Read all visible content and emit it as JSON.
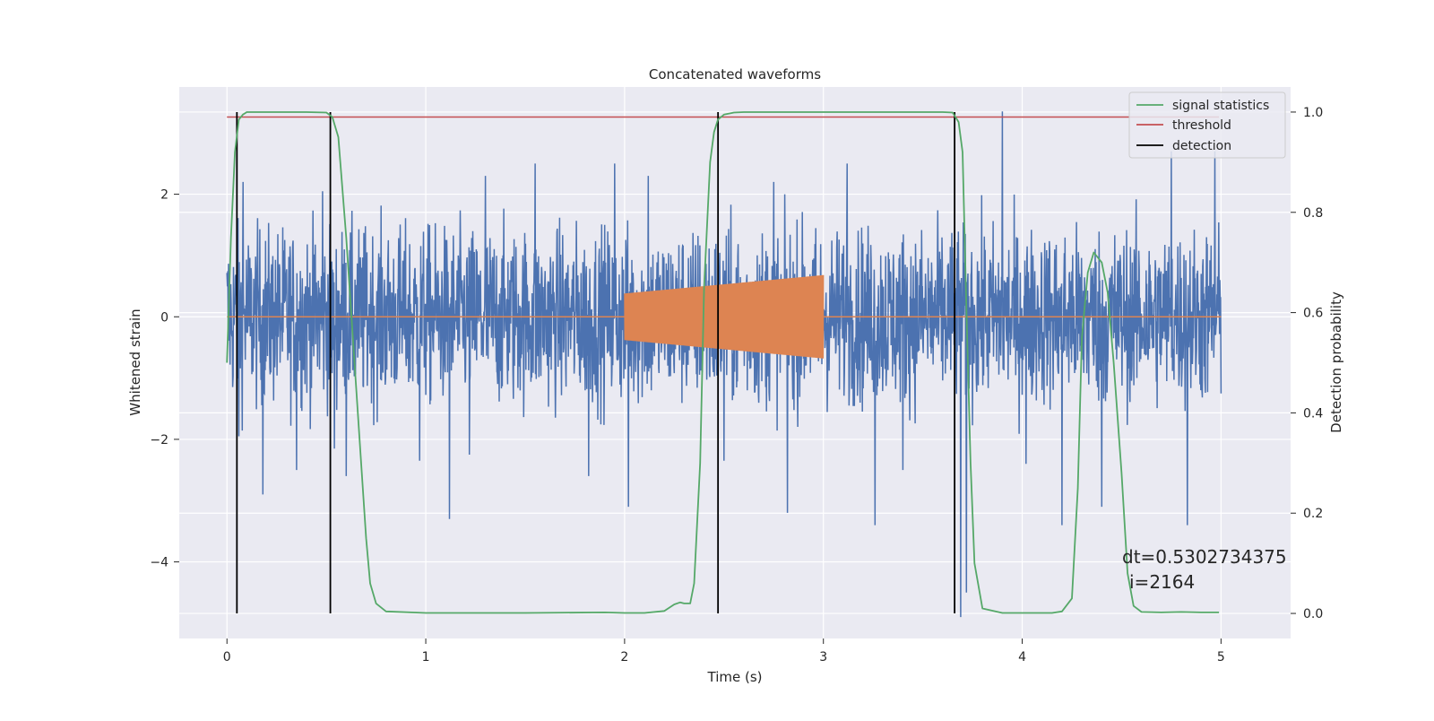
{
  "chart_data": {
    "type": "line",
    "title": "Concatenated waveforms",
    "xlabel": "Time (s)",
    "ylabel": "Whitened strain",
    "y2label": "Detection probability",
    "xlim": [
      -0.24,
      5.35
    ],
    "ylim": [
      -5.25,
      3.75
    ],
    "y2lim": [
      -0.05,
      1.05
    ],
    "xticks": [
      0,
      1,
      2,
      3,
      4,
      5
    ],
    "xtick_labels": [
      "0",
      "1",
      "2",
      "3",
      "4",
      "5"
    ],
    "yticks": [
      -4,
      -2,
      0,
      2
    ],
    "ytick_labels": [
      "−4",
      "−2",
      "0",
      "2"
    ],
    "y2ticks": [
      0.0,
      0.2,
      0.4,
      0.6,
      0.8,
      1.0
    ],
    "y2tick_labels": [
      "0.0",
      "0.2",
      "0.4",
      "0.6",
      "0.8",
      "1.0"
    ],
    "grid": true,
    "legend_position": "top-right",
    "annotations": [
      "dt=0.5302734375",
      "i=2164"
    ],
    "series": [
      {
        "name": "",
        "axis": "left",
        "kind": "noise",
        "color": "#4c72b0",
        "x_range": [
          0,
          5
        ],
        "typical_amplitude": 1.3,
        "peaks": [
          {
            "x": 0.06,
            "y": -1.95
          },
          {
            "x": 0.08,
            "y": 2.2
          },
          {
            "x": 0.18,
            "y": -2.9
          },
          {
            "x": 0.35,
            "y": -2.5
          },
          {
            "x": 0.48,
            "y": 2.05
          },
          {
            "x": 0.54,
            "y": -2.15
          },
          {
            "x": 0.6,
            "y": -2.6
          },
          {
            "x": 0.97,
            "y": -2.35
          },
          {
            "x": 1.12,
            "y": -3.3
          },
          {
            "x": 1.22,
            "y": -2.25
          },
          {
            "x": 1.3,
            "y": 2.3
          },
          {
            "x": 1.55,
            "y": 2.5
          },
          {
            "x": 1.82,
            "y": -2.6
          },
          {
            "x": 1.95,
            "y": 2.5
          },
          {
            "x": 2.02,
            "y": -3.1
          },
          {
            "x": 2.12,
            "y": 2.3
          },
          {
            "x": 2.5,
            "y": -2.35
          },
          {
            "x": 2.75,
            "y": 2.2
          },
          {
            "x": 2.82,
            "y": -3.2
          },
          {
            "x": 3.12,
            "y": 2.5
          },
          {
            "x": 3.26,
            "y": -3.4
          },
          {
            "x": 3.4,
            "y": -2.5
          },
          {
            "x": 3.69,
            "y": -4.9
          },
          {
            "x": 3.72,
            "y": -4.5
          },
          {
            "x": 3.9,
            "y": 3.35
          },
          {
            "x": 4.02,
            "y": -2.4
          },
          {
            "x": 4.2,
            "y": -3.4
          },
          {
            "x": 4.4,
            "y": -3.1
          },
          {
            "x": 4.75,
            "y": 2.7
          },
          {
            "x": 4.83,
            "y": -3.4
          },
          {
            "x": 4.97,
            "y": 2.7
          }
        ]
      },
      {
        "name": "",
        "axis": "left",
        "kind": "chirp",
        "color": "#dd8452",
        "x_range": [
          2.0,
          3.0
        ],
        "amplitude_start": 0.38,
        "amplitude_end": 0.68,
        "baseline": {
          "x": [
            0,
            5
          ],
          "y": 0
        }
      },
      {
        "name": "signal statistics",
        "axis": "right",
        "color": "#55a868",
        "x": [
          0,
          0.02,
          0.04,
          0.06,
          0.08,
          0.1,
          0.15,
          0.2,
          0.3,
          0.4,
          0.5,
          0.53,
          0.56,
          0.6,
          0.65,
          0.7,
          0.72,
          0.75,
          0.8,
          1.0,
          1.5,
          1.9,
          2.0,
          2.1,
          2.2,
          2.25,
          2.28,
          2.3,
          2.33,
          2.35,
          2.38,
          2.4,
          2.43,
          2.45,
          2.47,
          2.5,
          2.55,
          2.6,
          2.8,
          3.0,
          3.3,
          3.6,
          3.65,
          3.68,
          3.7,
          3.72,
          3.74,
          3.76,
          3.8,
          3.9,
          4.0,
          4.15,
          4.2,
          4.25,
          4.28,
          4.3,
          4.33,
          4.36,
          4.4,
          4.43,
          4.46,
          4.5,
          4.53,
          4.56,
          4.6,
          4.7,
          4.8,
          4.9,
          4.99
        ],
        "y": [
          0.5,
          0.75,
          0.92,
          0.985,
          0.995,
          1.0,
          1.0,
          1.0,
          1.0,
          1.0,
          0.999,
          0.99,
          0.95,
          0.75,
          0.45,
          0.15,
          0.06,
          0.02,
          0.004,
          0.001,
          0.001,
          0.002,
          0.001,
          0.001,
          0.005,
          0.018,
          0.022,
          0.02,
          0.02,
          0.06,
          0.3,
          0.65,
          0.9,
          0.96,
          0.985,
          0.995,
          0.999,
          1.0,
          1.0,
          1.0,
          1.0,
          1.0,
          0.999,
          0.98,
          0.92,
          0.6,
          0.3,
          0.1,
          0.01,
          0.001,
          0.001,
          0.001,
          0.004,
          0.03,
          0.25,
          0.55,
          0.68,
          0.72,
          0.7,
          0.64,
          0.5,
          0.28,
          0.08,
          0.015,
          0.003,
          0.002,
          0.003,
          0.002,
          0.002
        ]
      },
      {
        "name": "threshold",
        "axis": "right",
        "color": "#c44e52",
        "x": [
          0,
          4.99
        ],
        "y": [
          0.99,
          0.99
        ]
      },
      {
        "name": "detection",
        "axis": "right",
        "color": "#000000",
        "kind": "vertical-lines",
        "x": [
          0.05,
          0.52,
          2.47,
          3.66
        ],
        "y_range": [
          0,
          1
        ]
      }
    ]
  }
}
